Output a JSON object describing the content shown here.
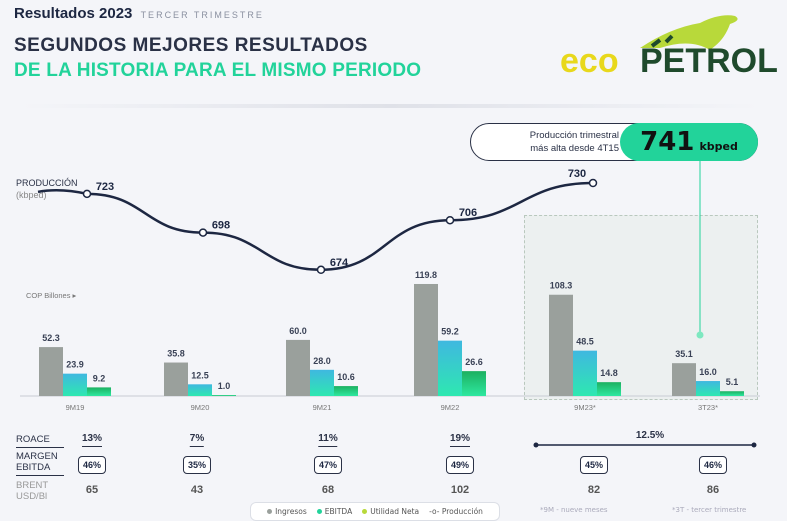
{
  "header": {
    "title": "Resultados 2023",
    "subtitle": "TERCER TRIMESTRE",
    "headline1": "SEGUNDOS MEJORES RESULTADOS",
    "headline2": "DE LA HISTORIA PARA EL MISMO PERIODO"
  },
  "logo": {
    "text1": "eco",
    "text2": "PETROL"
  },
  "callout": {
    "text1": "Producción trimestral",
    "text2": "más alta desde 4T15",
    "value": "741",
    "unit": "kbped"
  },
  "colors": {
    "ingresos": "#9aa09c",
    "ebitda": "#35d0c8",
    "utilidad": "#1fc66a",
    "line": "#1d2742",
    "accent": "#22d39a"
  },
  "chart_data": {
    "type": "bar",
    "categories": [
      "9M19",
      "9M20",
      "9M21",
      "9M22",
      "9M23*",
      "3T23*"
    ],
    "bar_axis_label": "COP Billones",
    "series": [
      {
        "name": "Ingresos",
        "values": [
          52.3,
          35.8,
          60.0,
          119.8,
          108.3,
          35.1
        ]
      },
      {
        "name": "EBITDA",
        "values": [
          23.9,
          12.5,
          28.0,
          59.2,
          48.5,
          16.0
        ]
      },
      {
        "name": "Utilidad Neta",
        "values": [
          9.2,
          1.0,
          10.6,
          26.6,
          14.8,
          5.1
        ]
      }
    ],
    "line": {
      "name": "Producción",
      "axis_label": "PRODUCCIÓN",
      "axis_unit": "(kbped)",
      "values": [
        723,
        698,
        674,
        706,
        730
      ]
    }
  },
  "table": {
    "roace_label": "ROACE",
    "margin_label1": "MARGEN",
    "margin_label2": "EBITDA",
    "brent_label1": "BRENT",
    "brent_label2": "USD/Bl",
    "roace": [
      "13%",
      "7%",
      "11%",
      "19%",
      "12.5%"
    ],
    "margin": [
      "46%",
      "35%",
      "47%",
      "49%",
      "45%",
      "46%"
    ],
    "brent": [
      "65",
      "43",
      "68",
      "102",
      "82",
      "86"
    ]
  },
  "legend": [
    "Ingresos",
    "EBITDA",
    "Utilidad Neta",
    "Producción"
  ],
  "footnotes": [
    "*9M - nueve meses",
    "*3T - tercer trimestre"
  ]
}
